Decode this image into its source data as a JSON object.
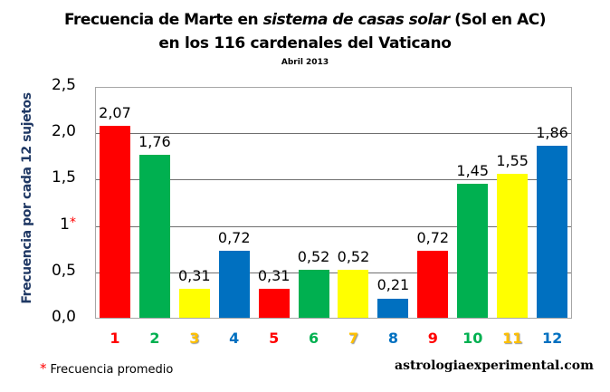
{
  "title": {
    "line1_prefix": "Frecuencia de Marte en ",
    "line1_italic": "sistema de casas solar",
    "line1_suffix": " (Sol en AC)",
    "line2": "en los 116 cardenales del Vaticano",
    "subtitle": "Abril 2013"
  },
  "y_axis": {
    "title": "Frecuencia por cada 12 sujetos",
    "ticks": [
      "0,0",
      "0,5",
      "1",
      "1,5",
      "2,0",
      "2,5"
    ],
    "star_marker": "*"
  },
  "footer": {
    "note_star": "*",
    "note": "Frecuencia promedio",
    "site": "astrologiaexperimental.com"
  },
  "colors": {
    "red": "#FF0000",
    "green": "#00B050",
    "yellow": "#FFFF00",
    "blue": "#0070C0",
    "yellow_label": "#FFC000",
    "axis_title": "#1F3864"
  },
  "chart_data": {
    "type": "bar",
    "title": "Frecuencia de Marte en sistema de casas solar (Sol en AC) en los 116 cardenales del Vaticano",
    "subtitle": "Abril 2013",
    "xlabel": "",
    "ylabel": "Frecuencia por cada 12 sujetos",
    "categories": [
      "1",
      "2",
      "3",
      "4",
      "5",
      "6",
      "7",
      "8",
      "9",
      "10",
      "11",
      "12"
    ],
    "values": [
      2.07,
      1.76,
      0.31,
      0.72,
      0.31,
      0.52,
      0.52,
      0.21,
      0.72,
      1.45,
      1.55,
      1.86
    ],
    "value_labels": [
      "2,07",
      "1,76",
      "0,31",
      "0,72",
      "0,31",
      "0,52",
      "0,52",
      "0,21",
      "0,72",
      "1,45",
      "1,55",
      "1,86"
    ],
    "bar_colors": [
      "#FF0000",
      "#00B050",
      "#FFFF00",
      "#0070C0",
      "#FF0000",
      "#00B050",
      "#FFFF00",
      "#0070C0",
      "#FF0000",
      "#00B050",
      "#FFFF00",
      "#0070C0"
    ],
    "ylim": [
      0,
      2.5
    ],
    "yticks": [
      0,
      0.5,
      1,
      1.5,
      2.0,
      2.5
    ],
    "grid": true,
    "reference_line": {
      "value": 1,
      "label": "Frecuencia promedio"
    },
    "legend": null
  }
}
